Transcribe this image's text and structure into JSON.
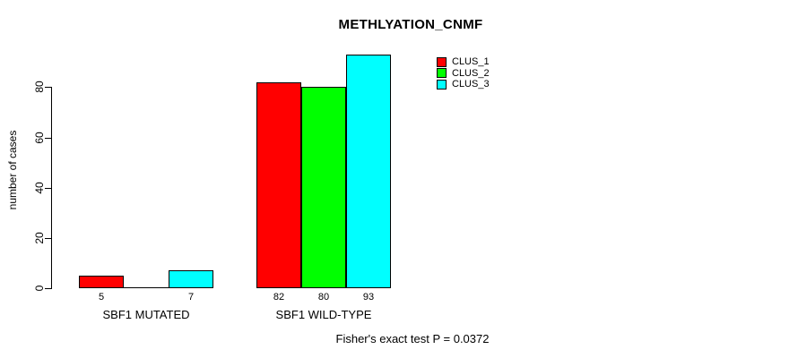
{
  "chart_data": {
    "type": "bar",
    "title": "METHLYATION_CNMF",
    "ylabel": "number of cases",
    "xlabel": "",
    "categories": [
      "SBF1 MUTATED",
      "SBF1 WILD-TYPE"
    ],
    "series": [
      {
        "name": "CLUS_1",
        "color": "#FF0000",
        "values": [
          5,
          82
        ]
      },
      {
        "name": "CLUS_2",
        "color": "#00FF00",
        "values": [
          0,
          80
        ]
      },
      {
        "name": "CLUS_3",
        "color": "#00FFFF",
        "values": [
          7,
          93
        ]
      }
    ],
    "bar_value_labels": [
      [
        "5",
        "",
        "7"
      ],
      [
        "82",
        "80",
        "93"
      ]
    ],
    "yticks": [
      0,
      20,
      40,
      60,
      80
    ],
    "ylim": [
      0,
      93
    ],
    "grid": false,
    "legend_position": "top-right",
    "annotation": "Fisher's exact test P = 0.0372"
  },
  "colors": {
    "bar_border": "#000000",
    "axis": "#000000",
    "background": "#FFFFFF"
  }
}
